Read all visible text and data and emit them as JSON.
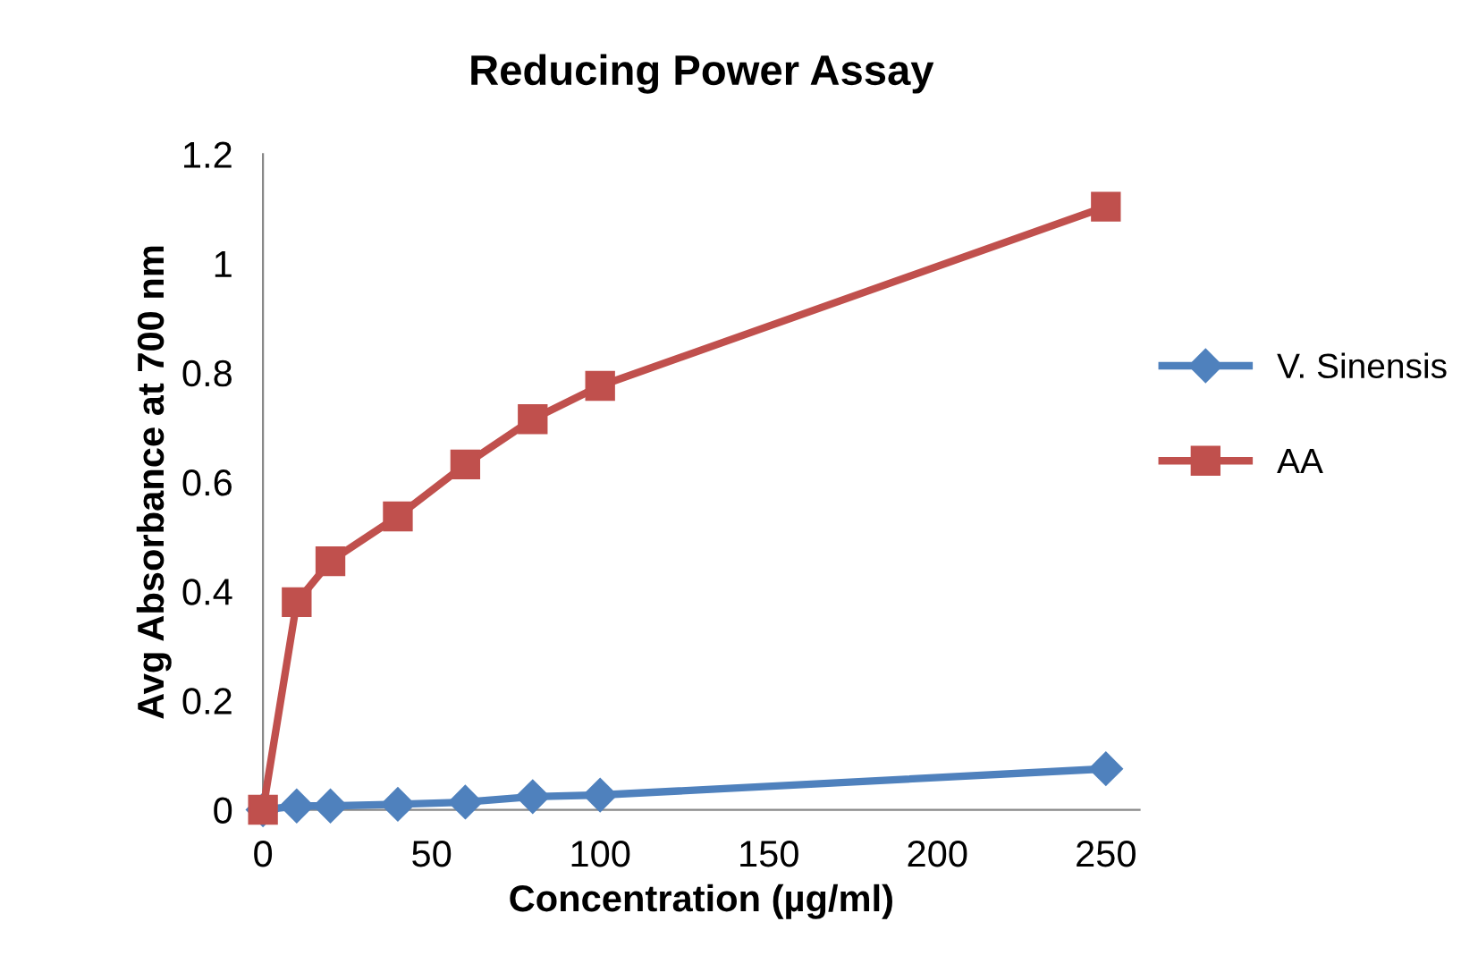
{
  "chart_data": {
    "type": "line",
    "title": "Reducing Power Assay",
    "xlabel": "Concentration (µg/ml)",
    "ylabel": "Avg Absorbance at 700 nm",
    "x": [
      0,
      10,
      20,
      40,
      60,
      80,
      100,
      250
    ],
    "series": [
      {
        "name": "V. Sinensis",
        "color": "#4f81bd",
        "marker": "diamond",
        "values": [
          0,
          0.007,
          0.007,
          0.01,
          0.014,
          0.024,
          0.027,
          0.075
        ]
      },
      {
        "name": "AA",
        "color": "#c0504d",
        "marker": "square",
        "values": [
          0,
          0.38,
          0.455,
          0.537,
          0.632,
          0.715,
          0.776,
          1.104
        ]
      }
    ],
    "xlim": [
      0,
      260
    ],
    "xticks": [
      0,
      50,
      100,
      150,
      200,
      250
    ],
    "ylim": [
      0,
      1.2
    ],
    "yticks": [
      0,
      0.2,
      0.4,
      0.6,
      0.8,
      1,
      1.2
    ],
    "grid": false,
    "legend": "right"
  }
}
